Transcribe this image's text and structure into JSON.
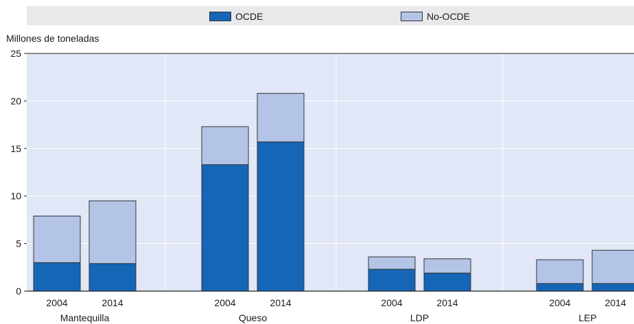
{
  "colors": {
    "oecd": "#1666b8",
    "non_oecd": "#b3c4e6",
    "plot_bg": "#e1e7f7",
    "legend_bg": "#e9e9ec"
  },
  "chart_data": {
    "type": "bar",
    "stacked": true,
    "title": "",
    "ylabel": "Millones de toneladas",
    "xlabel": "",
    "ylim": [
      0,
      25
    ],
    "yticks": [
      0,
      5,
      10,
      15,
      20,
      25
    ],
    "grid": true,
    "legend_position": "top",
    "groups": [
      {
        "name": "Mantequilla",
        "years": [
          "2004",
          "2014"
        ]
      },
      {
        "name": "Queso",
        "years": [
          "2004",
          "2014"
        ]
      },
      {
        "name": "LDP",
        "years": [
          "2004",
          "2014"
        ]
      },
      {
        "name": "LEP",
        "years": [
          "2004",
          "2014"
        ]
      }
    ],
    "categories": [
      "Mantequilla 2004",
      "Mantequilla 2014",
      "Queso 2004",
      "Queso 2014",
      "LDP 2004",
      "LDP 2014",
      "LEP 2004",
      "LEP 2014"
    ],
    "series": [
      {
        "name": "OCDE",
        "values": [
          3.0,
          2.9,
          13.3,
          15.7,
          2.3,
          1.9,
          0.8,
          0.8
        ]
      },
      {
        "name": "No-OCDE",
        "values": [
          4.9,
          6.6,
          4.0,
          5.1,
          1.3,
          1.5,
          2.5,
          3.5
        ]
      }
    ]
  }
}
